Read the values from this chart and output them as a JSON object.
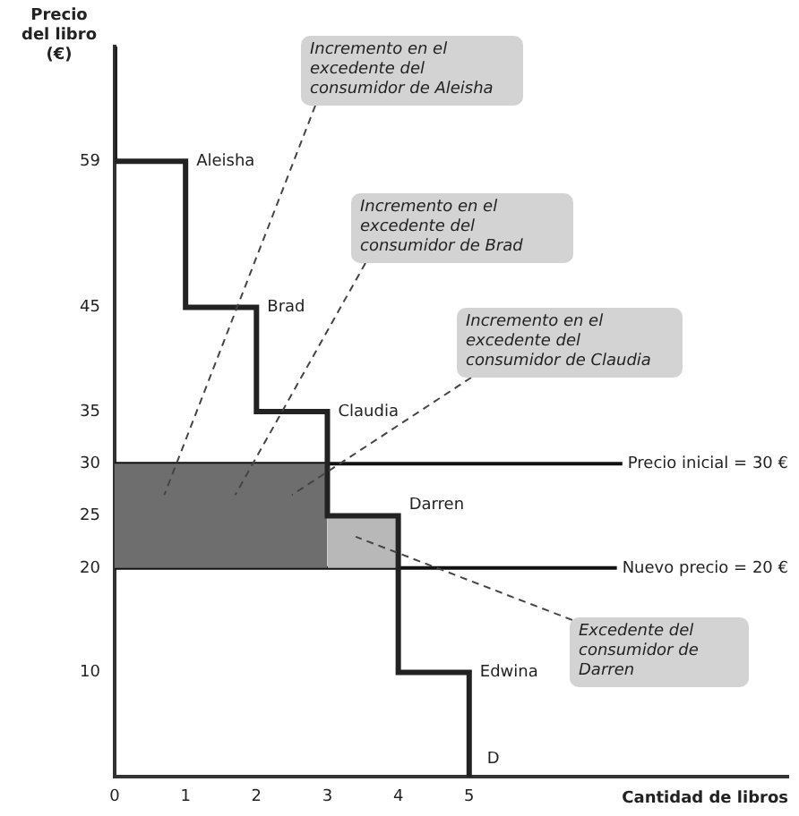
{
  "chart_data": {
    "type": "step",
    "xlabel": "Cantidad de libros",
    "ylabel": "Precio del libro (€)",
    "xlim": [
      0,
      9.5
    ],
    "ylim": [
      0,
      70
    ],
    "xticks": [
      0,
      1,
      2,
      3,
      4,
      5
    ],
    "yticks": [
      10,
      20,
      25,
      30,
      35,
      45,
      59
    ],
    "grid": false,
    "legend": false,
    "series": [
      {
        "color": "#222222",
        "x": [
          0,
          0,
          1,
          2,
          3,
          4,
          5
        ],
        "values": [
          70,
          59,
          45,
          35,
          25,
          10,
          0
        ]
      },
      {
        "type": "area",
        "color": "#6e6e6e",
        "x": [
          0,
          1,
          2,
          3
        ],
        "values": [
          null,
          null,
          null,
          null
        ],
        "lower": [
          20,
          20,
          20,
          20
        ],
        "upper": [
          30,
          30,
          30,
          30
        ]
      },
      {
        "type": "area",
        "color": "#b8b8b8",
        "x": [
          3,
          3.5,
          4
        ],
        "values": [
          null,
          null,
          null
        ],
        "lower": [
          20,
          20,
          20
        ],
        "upper": [
          25,
          25,
          25
        ]
      }
    ],
    "ref_lines": [
      {
        "axis": "y",
        "value": 30,
        "label": "Precio inicial = 30 €"
      },
      {
        "axis": "y",
        "value": 20,
        "label": "Nuevo precio = 20 €"
      }
    ],
    "annotations": [
      "Incremento en el excedente del consumidor de Aleisha",
      "Incremento en el excedente del consumidor de Brad",
      "Incremento en el excedente del consumidor de Claudia",
      "Excedente del consumidor de Darren",
      {
        "text": "Aleisha",
        "x": 1,
        "y": 59
      },
      {
        "text": "Brad",
        "x": 2,
        "y": 45
      },
      {
        "text": "Claudia",
        "x": 3,
        "y": 35
      },
      {
        "text": "Darren",
        "x": 4,
        "y": 25
      },
      {
        "text": "Edwina",
        "x": 5,
        "y": 10
      },
      {
        "text": "D",
        "x": 5,
        "y": 0
      }
    ]
  }
}
